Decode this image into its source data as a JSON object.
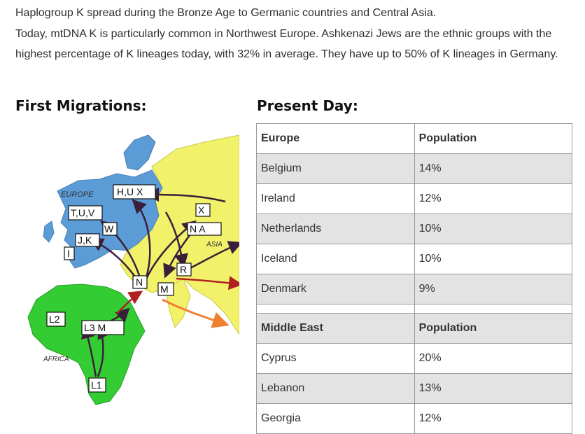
{
  "intro": {
    "line1": "Haplogroup K spread during the Bronze Age to Germanic countries and Central Asia.",
    "line2": "Today, mtDNA K is particularly common in Northwest Europe. Ashkenazi Jews are the ethnic groups with the highest percentage of K lineages today, with 32% in average. They have up to 50% of K lineages in Germany."
  },
  "headings": {
    "first_migrations": "First Migrations:",
    "present_day": "Present Day:"
  },
  "map": {
    "region_labels": {
      "europe": "EUROPE",
      "asia": "ASIA",
      "africa": "AFRICA"
    },
    "haplogroup_boxes": {
      "huk": "H,U X",
      "tuv": "T,U,V",
      "w": "W",
      "jk": "J,K",
      "i": "I",
      "x": "X",
      "na": "N A",
      "r": "R",
      "n": "N",
      "m": "M",
      "l2": "L2",
      "l3m": "L3 M",
      "l1": "L1"
    },
    "colors": {
      "europe": "#5b9bd6",
      "asia": "#f2f26a",
      "africa": "#33cc33",
      "arrow": "#3a1f3a",
      "migration_orange": "#f08030",
      "migration_red": "#b02020"
    }
  },
  "table": {
    "europe_header": {
      "region": "Europe",
      "population": "Population"
    },
    "europe_rows": [
      {
        "country": "Belgium",
        "pct": "14%"
      },
      {
        "country": "Ireland",
        "pct": "12%"
      },
      {
        "country": "Netherlands",
        "pct": "10%"
      },
      {
        "country": "Iceland",
        "pct": "10%"
      },
      {
        "country": "Denmark",
        "pct": "9%"
      }
    ],
    "mideast_header": {
      "region": "Middle East",
      "population": "Population"
    },
    "mideast_rows": [
      {
        "country": "Cyprus",
        "pct": "20%"
      },
      {
        "country": "Lebanon",
        "pct": "13%"
      },
      {
        "country": "Georgia",
        "pct": "12%"
      }
    ]
  }
}
